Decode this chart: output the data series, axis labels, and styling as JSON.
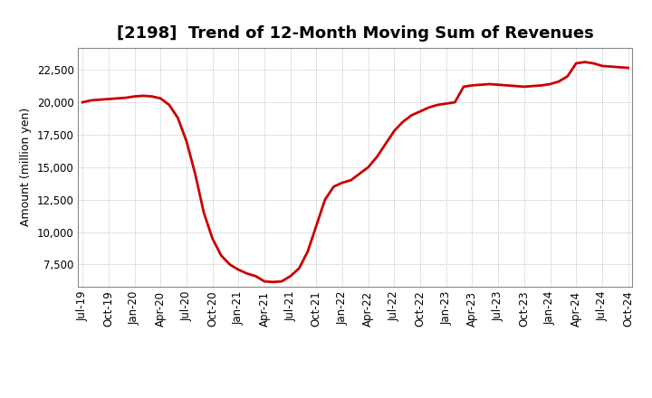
{
  "title": "[2198]  Trend of 12-Month Moving Sum of Revenues",
  "ylabel": "Amount (million yen)",
  "line_color": "#cc0000",
  "line_width": 2.0,
  "background_color": "#ffffff",
  "grid_color": "#aaaaaa",
  "values": [
    20000,
    20150,
    20200,
    20250,
    20300,
    20350,
    20450,
    20500,
    20450,
    20300,
    19800,
    18800,
    17000,
    14500,
    11500,
    9500,
    8200,
    7500,
    7100,
    6800,
    6600,
    6200,
    6150,
    6200,
    6600,
    7200,
    8500,
    10500,
    12500,
    13500,
    13800,
    14000,
    14500,
    15000,
    15800,
    16800,
    17800,
    18500,
    19000,
    19300,
    19600,
    19800,
    19900,
    20000,
    21200,
    21300,
    21350,
    21400,
    21350,
    21300,
    21250,
    21200,
    21250,
    21300,
    21400,
    21600,
    22000,
    23000,
    23100,
    23000,
    22800,
    22750,
    22700,
    22650
  ],
  "xtick_labels": [
    "Jul-19",
    "Oct-19",
    "Jan-20",
    "Apr-20",
    "Jul-20",
    "Oct-20",
    "Jan-21",
    "Apr-21",
    "Jul-21",
    "Oct-21",
    "Jan-22",
    "Apr-22",
    "Jul-22",
    "Oct-22",
    "Jan-23",
    "Apr-23",
    "Jul-23",
    "Oct-23",
    "Jan-24",
    "Apr-24",
    "Jul-24",
    "Oct-24"
  ],
  "xtick_positions": [
    0,
    3,
    6,
    9,
    12,
    15,
    18,
    21,
    24,
    27,
    30,
    33,
    36,
    39,
    42,
    45,
    48,
    51,
    54,
    57,
    60,
    63
  ],
  "ylim": [
    5800,
    24200
  ],
  "yticks": [
    7500,
    10000,
    12500,
    15000,
    17500,
    20000,
    22500
  ],
  "title_fontsize": 13,
  "axis_fontsize": 9,
  "tick_fontsize": 8.5
}
